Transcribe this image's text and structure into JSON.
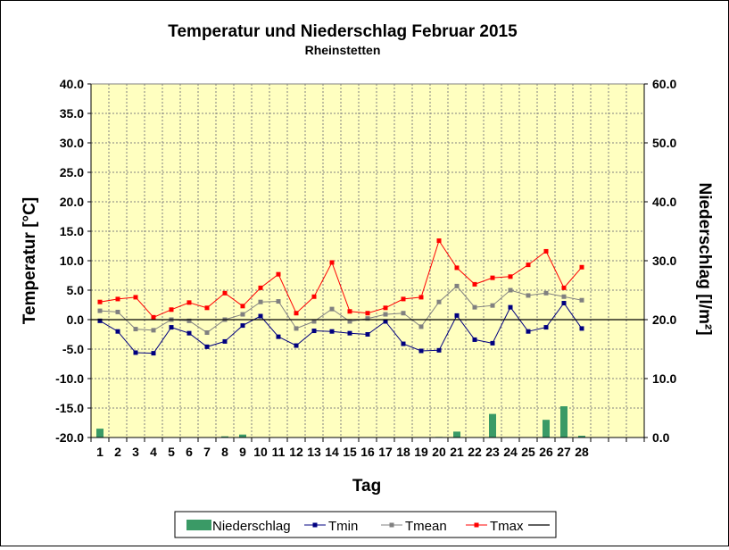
{
  "chart_data": {
    "type": "bar+line",
    "title": "Temperatur und Niederschlag Februar 2015",
    "subtitle": "Rheinstetten",
    "xlabel": "Tag",
    "ylabel_left": "Temperatur [°C]",
    "ylabel_right": "Niederschlag [l/m²]",
    "ylim_left": [
      -20,
      40
    ],
    "ylim_right": [
      0,
      60
    ],
    "yticks_left": [
      "40.0",
      "35.0",
      "30.0",
      "25.0",
      "20.0",
      "15.0",
      "10.0",
      "5.0",
      "0.0",
      "-5.0",
      "-10.0",
      "-15.0",
      "-20.0"
    ],
    "yticks_right": [
      "60.0",
      "50.0",
      "40.0",
      "30.0",
      "20.0",
      "10.0",
      "0.0"
    ],
    "x_slots": 31,
    "categories": [
      "1",
      "2",
      "3",
      "4",
      "5",
      "6",
      "7",
      "8",
      "9",
      "10",
      "11",
      "12",
      "13",
      "14",
      "15",
      "16",
      "17",
      "18",
      "19",
      "20",
      "21",
      "22",
      "23",
      "24",
      "25",
      "26",
      "27",
      "28"
    ],
    "grid": true,
    "legend_position": "bottom",
    "series": [
      {
        "name": "Niederschlag",
        "kind": "bar",
        "axis": "right",
        "color": "#3a9a66",
        "values": [
          1.5,
          0,
          0,
          0,
          0,
          0,
          0,
          0.2,
          0.5,
          0,
          0,
          0,
          0,
          0,
          0,
          0,
          0,
          0,
          0,
          0.1,
          1,
          0,
          4,
          0,
          0,
          3,
          5.3,
          0.3
        ]
      },
      {
        "name": "Tmin",
        "kind": "line",
        "axis": "left",
        "color": "#000080",
        "values": [
          -0.2,
          -2.0,
          -5.6,
          -5.7,
          -1.3,
          -2.3,
          -4.6,
          -3.7,
          -1.0,
          0.6,
          -2.9,
          -4.4,
          -1.9,
          -2.0,
          -2.3,
          -2.5,
          -0.3,
          -4.1,
          -5.3,
          -5.2,
          0.7,
          -3.4,
          -4.0,
          2.1,
          -2.0,
          -1.3,
          2.8,
          -1.5
        ]
      },
      {
        "name": "Tmean",
        "kind": "line",
        "axis": "left",
        "color": "#808080",
        "values": [
          1.5,
          1.3,
          -1.6,
          -1.8,
          0.0,
          -0.2,
          -2.2,
          0.0,
          0.9,
          3.0,
          3.1,
          -1.5,
          -0.3,
          1.8,
          -0.3,
          0.2,
          0.9,
          1.1,
          -1.2,
          3.0,
          5.7,
          2.1,
          2.4,
          5.0,
          4.1,
          4.5,
          3.9,
          3.3
        ]
      },
      {
        "name": "Tmax",
        "kind": "line",
        "axis": "left",
        "color": "#ff0000",
        "values": [
          3.0,
          3.5,
          3.8,
          0.4,
          1.7,
          2.9,
          2.0,
          4.5,
          2.3,
          5.4,
          7.7,
          1.1,
          3.9,
          9.7,
          1.4,
          1.1,
          2.0,
          3.5,
          3.8,
          13.4,
          8.8,
          6.0,
          7.1,
          7.3,
          9.3,
          11.6,
          5.4,
          8.9
        ]
      },
      {
        "name": "",
        "kind": "refline",
        "axis": "left",
        "color": "#000000",
        "value": 0
      }
    ]
  }
}
